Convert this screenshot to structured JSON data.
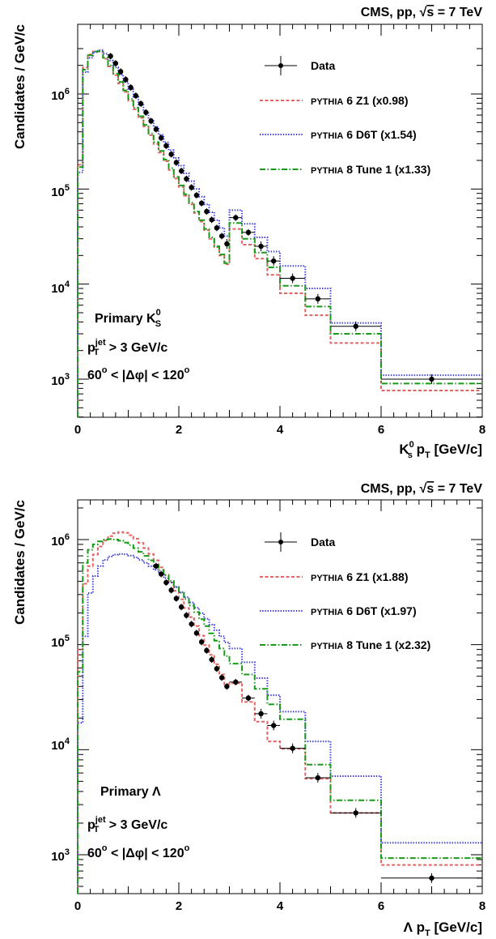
{
  "chart_data": [
    {
      "type": "line",
      "title": "CMS, pp, √s = 7 TeV",
      "title_parts": {
        "pre": "CMS, pp, ",
        "sqrt": "√",
        "s": "s",
        "post": " = 7 TeV"
      },
      "xlabel": "K",
      "xlabel_parts": {
        "particle": "K",
        "sup": "0",
        "sub": "s",
        "rest_main": " p",
        "rest_sub": "T",
        "unit": " [GeV/c]"
      },
      "ylabel": "Candidates / GeV/c",
      "xlim": [
        0,
        8
      ],
      "ylim": [
        400,
        3200000
      ],
      "yscale": "log",
      "x_ticks": [
        "0",
        "2",
        "4",
        "6",
        "8"
      ],
      "y_ticks": [
        {
          "value": 1000,
          "base": "10",
          "exp": "3"
        },
        {
          "value": 10000,
          "base": "10",
          "exp": "4"
        },
        {
          "value": 100000,
          "base": "10",
          "exp": "5"
        },
        {
          "value": 1000000,
          "base": "10",
          "exp": "6"
        }
      ],
      "legend_position": "top-right",
      "bin_edges": [
        0,
        0.1,
        0.2,
        0.3,
        0.4,
        0.5,
        0.6,
        0.7,
        0.8,
        0.9,
        1.0,
        1.1,
        1.2,
        1.3,
        1.4,
        1.5,
        1.6,
        1.7,
        1.8,
        1.9,
        2.0,
        2.1,
        2.2,
        2.3,
        2.4,
        2.5,
        2.6,
        2.7,
        2.8,
        2.9,
        3.0,
        3.25,
        3.5,
        3.75,
        4.0,
        4.5,
        5.0,
        6.0,
        8.0
      ],
      "data": {
        "name": "Data",
        "x": [
          0.65,
          0.75,
          0.85,
          0.95,
          1.05,
          1.15,
          1.25,
          1.35,
          1.45,
          1.55,
          1.65,
          1.75,
          1.85,
          1.95,
          2.05,
          2.15,
          2.25,
          2.35,
          2.45,
          2.55,
          2.65,
          2.75,
          2.85,
          2.95,
          3.125,
          3.375,
          3.625,
          3.875,
          4.25,
          4.75,
          5.5,
          7.0
        ],
        "y": [
          2500000,
          2100000,
          1720000,
          1420000,
          1170000,
          960000,
          790000,
          640000,
          520000,
          425000,
          345000,
          285000,
          232000,
          190000,
          155000,
          128000,
          104000,
          86000,
          71000,
          58000,
          47500,
          39000,
          32000,
          26500,
          50000,
          35000,
          25000,
          17500,
          11500,
          7000,
          3600,
          1000
        ]
      },
      "series": [
        {
          "name": "Z1 (x0.98)",
          "label_generator": "PYTHIA",
          "label_rest": " 6 Z1 (x0.98)",
          "color": "#e06666",
          "dash": "4,2.5",
          "values": [
            180000,
            1900000,
            2600000,
            2800000,
            2800000,
            2350000,
            1950000,
            1580000,
            1290000,
            1050000,
            850000,
            690000,
            560000,
            455000,
            368000,
            298000,
            242000,
            196000,
            159000,
            129000,
            105000,
            85000,
            69000,
            56000,
            45500,
            37000,
            30000,
            24500,
            20000,
            16200,
            38000,
            26000,
            18500,
            12500,
            8000,
            4700,
            2400,
            760
          ]
        },
        {
          "name": "D6T (x1.54)",
          "label_generator": "PYTHIA",
          "label_rest": " 6 D6T (x1.54)",
          "color": "#3a3ae0",
          "dash": "1.4,1.8",
          "values": [
            150000,
            1700000,
            2400000,
            2750000,
            2900000,
            2650000,
            2250000,
            1900000,
            1600000,
            1340000,
            1120000,
            935000,
            780000,
            650000,
            540000,
            449000,
            372000,
            309000,
            256000,
            212000,
            176000,
            146000,
            121000,
            100000,
            83000,
            69000,
            57000,
            47000,
            39000,
            32000,
            60000,
            43000,
            31000,
            22000,
            15500,
            9000,
            3900,
            1100
          ]
        },
        {
          "name": "Tune 1 (x1.33)",
          "label_generator": "PYTHIA",
          "label_rest": " 8 Tune 1 (x1.33)",
          "color": "#1a9a1a",
          "dash": "7,2.5,1.5,2.5",
          "values": [
            170000,
            1800000,
            2550000,
            2800000,
            2800000,
            2400000,
            2000000,
            1640000,
            1340000,
            1090000,
            885000,
            718000,
            583000,
            473000,
            384000,
            311000,
            252000,
            204000,
            166000,
            134000,
            109000,
            88000,
            72000,
            58000,
            47000,
            38000,
            31000,
            25000,
            20500,
            16600,
            44000,
            30000,
            21500,
            15000,
            9600,
            5800,
            3000,
            900
          ]
        }
      ],
      "annotations": {
        "line1": {
          "pre": "Primary K",
          "sup": "0",
          "sub": "S"
        },
        "line2": {
          "pre": "p",
          "sup": "jet",
          "sub": "T",
          "post": " > 3 GeV/c"
        },
        "line3": {
          "a": "60",
          "deg": "o",
          "mid": " < |Δφ| < 120",
          "deg2": "o"
        }
      }
    },
    {
      "type": "line",
      "title": "CMS, pp, √s = 7 TeV",
      "title_parts": {
        "pre": "CMS, pp, ",
        "sqrt": "√",
        "s": "s",
        "post": " = 7 TeV"
      },
      "xlabel": "Λ p_T [GeV/c]",
      "xlabel_parts": {
        "particle": "Λ",
        "sup": "",
        "sub": "",
        "rest_main": " p",
        "rest_sub": "T",
        "unit": " [GeV/c]"
      },
      "ylabel": "Candidates / GeV/c",
      "xlim": [
        0,
        8
      ],
      "ylim": [
        400,
        2000000
      ],
      "yscale": "log",
      "x_ticks": [
        "0",
        "2",
        "4",
        "6",
        "8"
      ],
      "y_ticks": [
        {
          "value": 1000,
          "base": "10",
          "exp": "3"
        },
        {
          "value": 10000,
          "base": "10",
          "exp": "4"
        },
        {
          "value": 100000,
          "base": "10",
          "exp": "5"
        },
        {
          "value": 1000000,
          "base": "10",
          "exp": "6"
        }
      ],
      "legend_position": "top-right",
      "bin_edges": [
        0,
        0.1,
        0.2,
        0.3,
        0.4,
        0.5,
        0.6,
        0.7,
        0.8,
        0.9,
        1.0,
        1.1,
        1.2,
        1.3,
        1.4,
        1.5,
        1.6,
        1.7,
        1.8,
        1.9,
        2.0,
        2.1,
        2.2,
        2.3,
        2.4,
        2.5,
        2.6,
        2.7,
        2.8,
        2.9,
        3.0,
        3.25,
        3.5,
        3.75,
        4.0,
        4.5,
        5.0,
        6.0,
        8.0
      ],
      "data": {
        "name": "Data",
        "x": [
          1.55,
          1.65,
          1.75,
          1.85,
          1.95,
          2.05,
          2.15,
          2.25,
          2.35,
          2.45,
          2.55,
          2.65,
          2.75,
          2.85,
          2.95,
          3.125,
          3.375,
          3.625,
          3.875,
          4.25,
          4.75,
          5.5,
          7.0
        ],
        "y": [
          560000,
          470000,
          390000,
          330000,
          275000,
          228000,
          190000,
          157000,
          129000,
          106000,
          88000,
          72000,
          59000,
          48500,
          40000,
          44000,
          31000,
          22000,
          17000,
          10300,
          5400,
          2500,
          600
        ]
      },
      "series": [
        {
          "name": "Z1 (x1.88)",
          "label_generator": "PYTHIA",
          "label_rest": " 6 Z1 (x1.88)",
          "color": "#e06666",
          "dash": "4,2.5",
          "values": [
            90000,
            380000,
            560000,
            720000,
            860000,
            980000,
            1080000,
            1150000,
            1180000,
            1160000,
            1100000,
            1020000,
            930000,
            830000,
            730000,
            635000,
            545000,
            463000,
            390000,
            325000,
            270000,
            223000,
            183000,
            150000,
            122000,
            99000,
            80000,
            65000,
            52000,
            42000,
            43000,
            28500,
            18500,
            12000,
            10200,
            5300,
            2500,
            800
          ]
        },
        {
          "name": "D6T (x1.97)",
          "label_generator": "PYTHIA",
          "label_rest": " 6 D6T (x1.97)",
          "color": "#3a3ae0",
          "dash": "1.4,1.8",
          "values": [
            18000,
            120000,
            310000,
            450000,
            560000,
            640000,
            690000,
            720000,
            730000,
            725000,
            705000,
            675000,
            640000,
            600000,
            558000,
            515000,
            472000,
            430000,
            390000,
            352000,
            316000,
            283000,
            252000,
            224000,
            199000,
            176000,
            155000,
            137000,
            120000,
            105000,
            92000,
            68000,
            48000,
            33000,
            23000,
            12000,
            5600,
            1300
          ]
        },
        {
          "name": "Tune 1 (x2.32)",
          "label_generator": "PYTHIA",
          "label_rest": " 8 Tune 1 (x2.32)",
          "color": "#1a9a1a",
          "dash": "7,2.5,1.5,2.5",
          "values": [
            55000,
            600000,
            800000,
            900000,
            960000,
            1000000,
            1010000,
            1000000,
            975000,
            935000,
            885000,
            828000,
            765000,
            700000,
            635000,
            572000,
            512000,
            456000,
            404000,
            356000,
            312000,
            272000,
            236000,
            204000,
            175000,
            150000,
            128000,
            109000,
            92000,
            78000,
            66000,
            52000,
            38000,
            27000,
            19500,
            7200,
            3300,
            930
          ]
        }
      ],
      "annotations": {
        "line1": {
          "pre": "Primary ",
          "particle": "Λ"
        },
        "line2": {
          "pre": "p",
          "sup": "jet",
          "sub": "T",
          "post": " > 3 GeV/c"
        },
        "line3": {
          "a": "60",
          "deg": "o",
          "mid": " < |Δφ| < 120",
          "deg2": "o"
        }
      }
    }
  ]
}
